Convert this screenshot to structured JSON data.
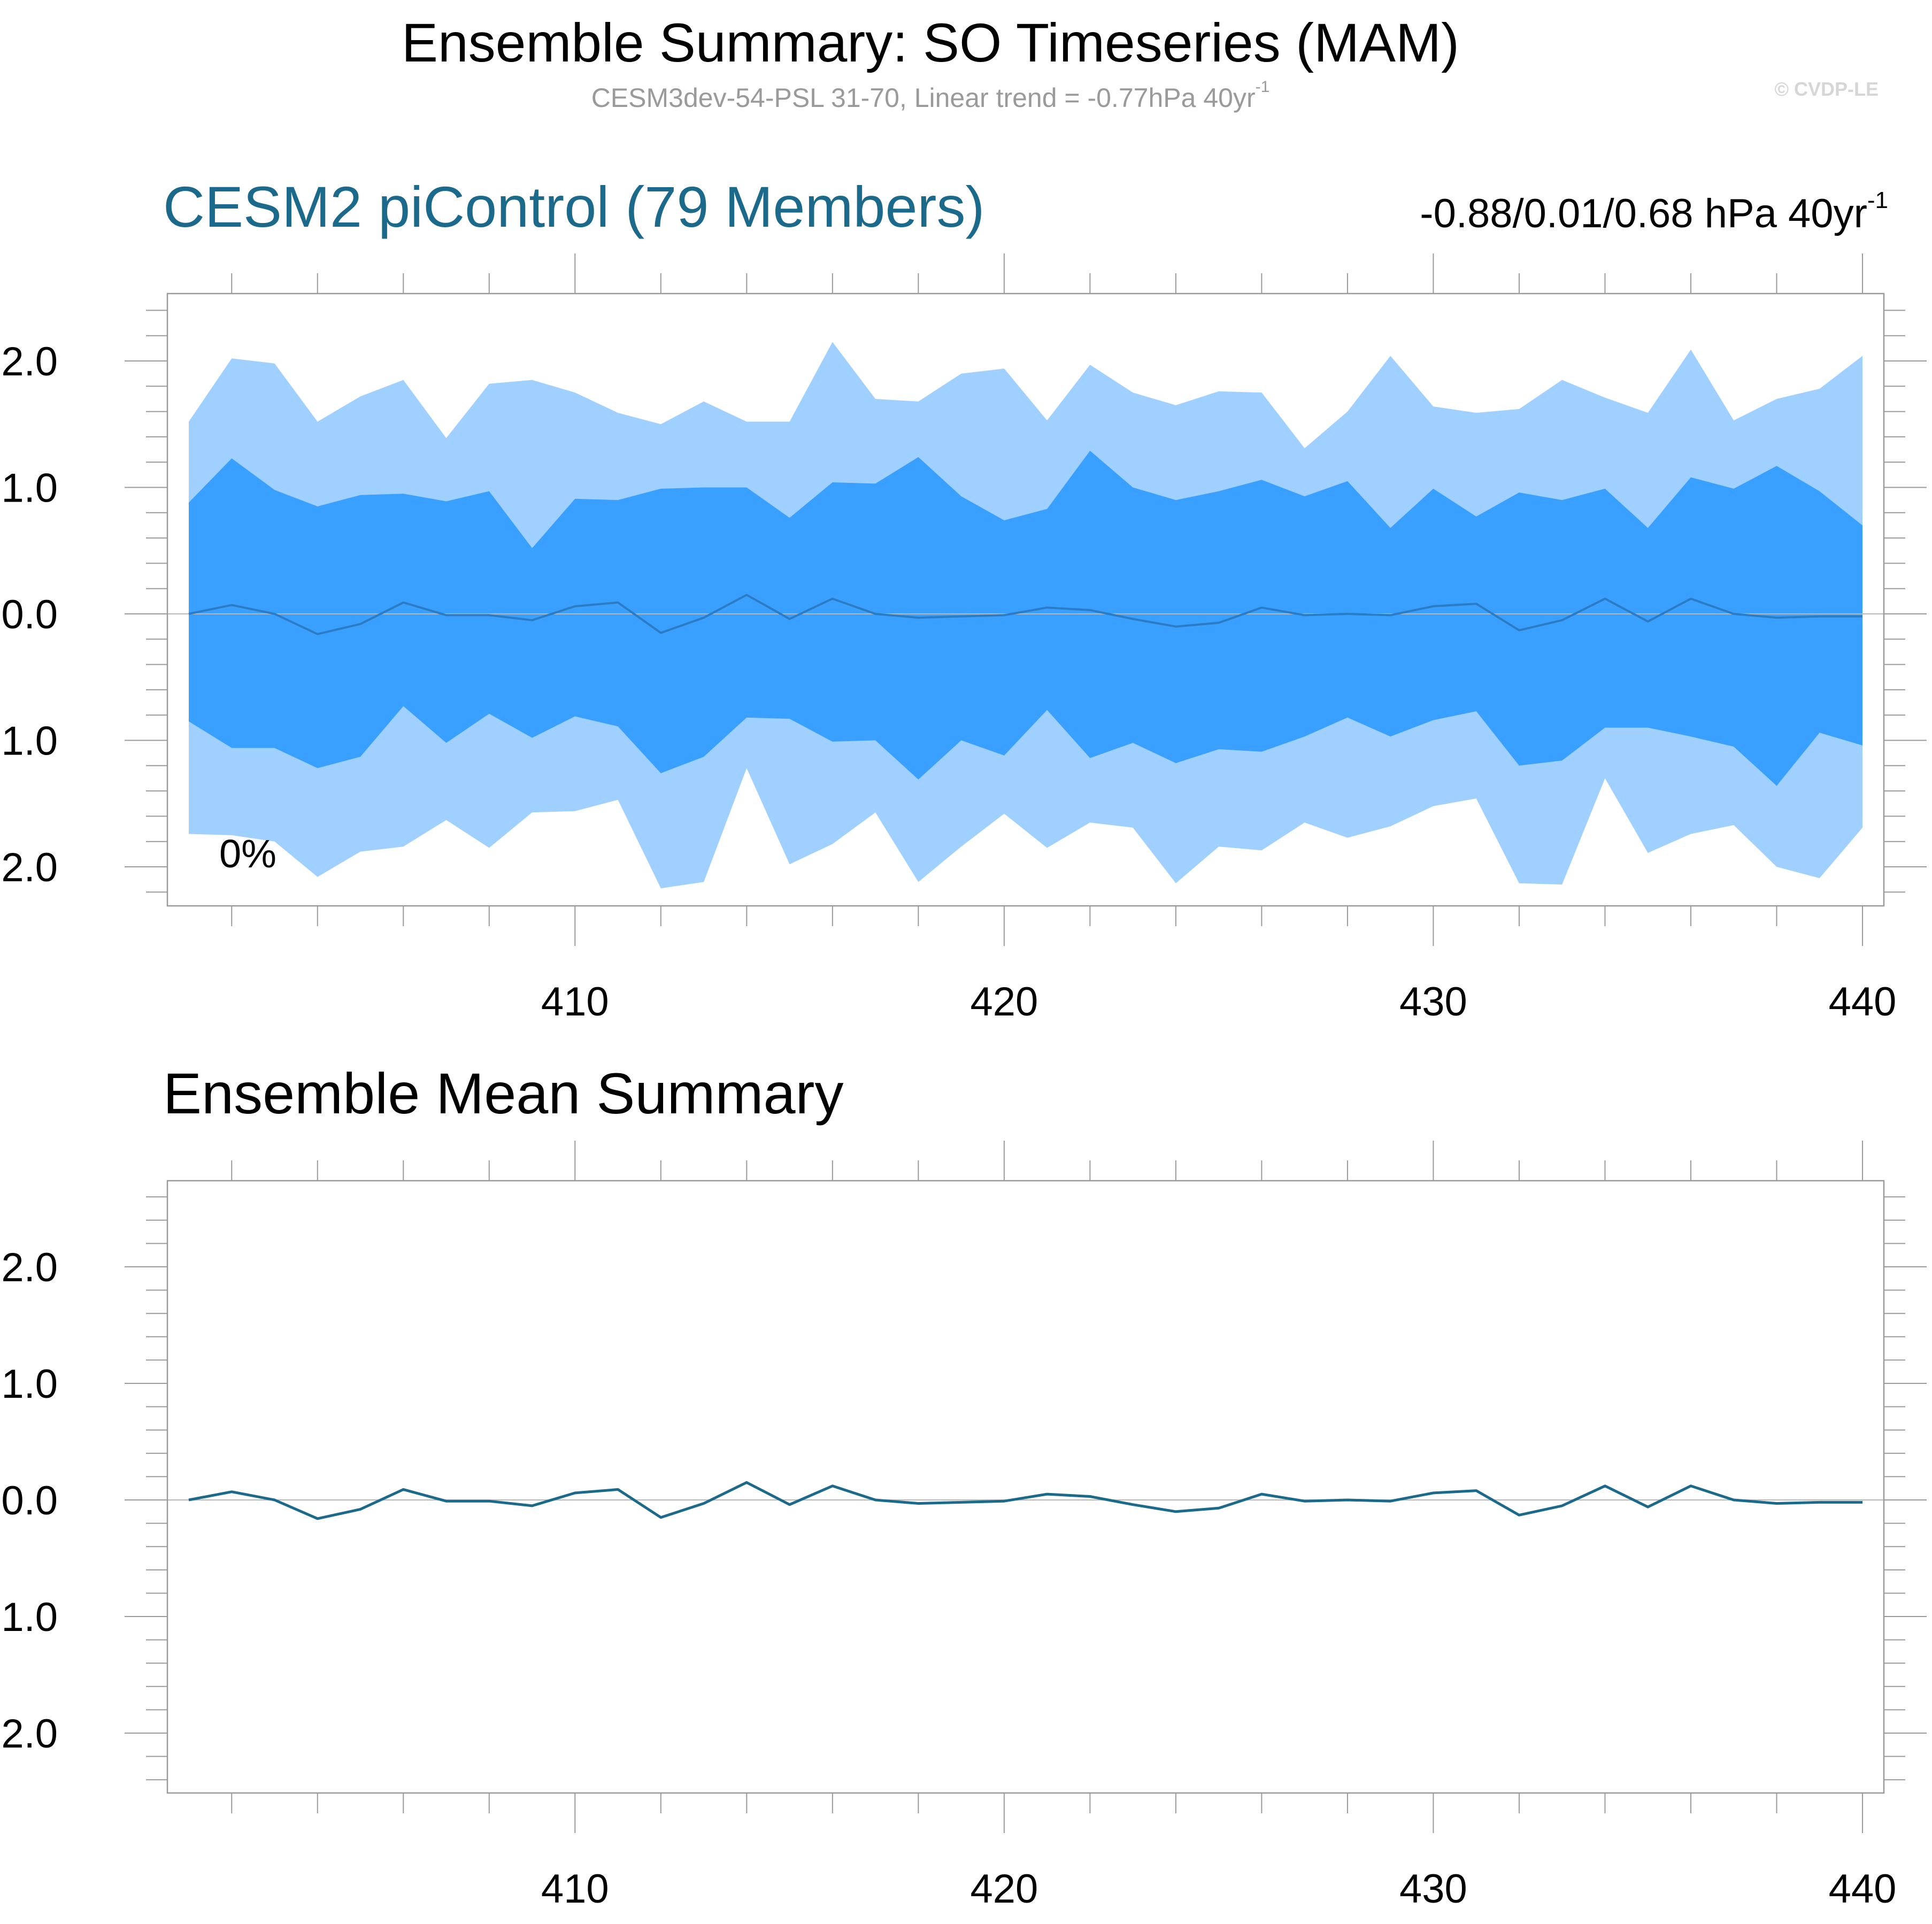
{
  "header": {
    "title": "Ensemble Summary: SO Timeseries (MAM)",
    "subtitle": "CESM3dev-54-PSL 31-70, Linear trend = -0.77hPa 40yr",
    "subtitle_sup": "-1",
    "watermark": "© CVDP-LE"
  },
  "panel1": {
    "title": "CESM2 piControl (79 Members)",
    "stats": "-0.88/0.01/0.68 hPa 40yr",
    "stats_sup": "-1",
    "annotation": "0%"
  },
  "panel2": {
    "title": "Ensemble Mean Summary"
  },
  "colors": {
    "outer_band": "#a0d0ff",
    "inner_band": "#3aa0ff",
    "p1_mean_line": "#2b7cc4",
    "p2_mean_line": "#1b6a8b",
    "frame": "#9a9a9a"
  },
  "chart_data": [
    {
      "type": "area",
      "x": [
        401,
        402,
        403,
        404,
        405,
        406,
        407,
        408,
        409,
        410,
        411,
        412,
        413,
        414,
        415,
        416,
        417,
        418,
        419,
        420,
        421,
        422,
        423,
        424,
        425,
        426,
        427,
        428,
        429,
        430,
        431,
        432,
        433,
        434,
        435,
        436,
        437,
        438,
        439,
        440
      ],
      "xlim": [
        400.5,
        441
      ],
      "ylim": [
        -2.3,
        2.55
      ],
      "xticks": [
        410,
        420,
        430,
        440
      ],
      "yticks": [
        2.0,
        1.0,
        0.0,
        -1.0,
        -2.0
      ],
      "ytick_labels": [
        "2.0",
        "1.0",
        "0.0",
        "-1.0",
        "-2.0"
      ],
      "series": [
        {
          "role": "max",
          "values": [
            1.52,
            2.02,
            1.98,
            1.52,
            1.72,
            1.85,
            1.39,
            1.82,
            1.85,
            1.75,
            1.59,
            1.5,
            1.68,
            1.52,
            1.52,
            2.15,
            1.7,
            1.68,
            1.9,
            1.94,
            1.53,
            1.97,
            1.75,
            1.65,
            1.76,
            1.75,
            1.31,
            1.6,
            2.04,
            1.64,
            1.59,
            1.62,
            1.85,
            1.71,
            1.59,
            2.09,
            1.53,
            1.7,
            1.78,
            2.04
          ]
        },
        {
          "role": "upper",
          "values": [
            0.88,
            1.23,
            0.98,
            0.85,
            0.94,
            0.95,
            0.89,
            0.97,
            0.52,
            0.91,
            0.9,
            0.99,
            1.0,
            1.0,
            0.76,
            1.04,
            1.03,
            1.24,
            0.93,
            0.74,
            0.83,
            1.29,
            1.0,
            0.9,
            0.97,
            1.06,
            0.93,
            1.05,
            0.68,
            0.99,
            0.77,
            0.96,
            0.9,
            0.99,
            0.68,
            1.08,
            0.99,
            1.17,
            0.97,
            0.7
          ]
        },
        {
          "role": "mean",
          "values": [
            0.0,
            0.07,
            0.0,
            -0.16,
            -0.08,
            0.09,
            -0.01,
            -0.01,
            -0.05,
            0.06,
            0.09,
            -0.15,
            -0.03,
            0.15,
            -0.04,
            0.12,
            0.0,
            -0.03,
            -0.02,
            -0.01,
            0.05,
            0.03,
            -0.04,
            -0.1,
            -0.07,
            0.05,
            -0.01,
            0.0,
            -0.01,
            0.06,
            0.08,
            -0.13,
            -0.05,
            0.12,
            -0.06,
            0.12,
            0.0,
            -0.03,
            -0.02,
            -0.02
          ]
        },
        {
          "role": "lower",
          "values": [
            -0.85,
            -1.06,
            -1.06,
            -1.22,
            -1.13,
            -0.73,
            -1.02,
            -0.79,
            -0.98,
            -0.81,
            -0.89,
            -1.26,
            -1.13,
            -0.82,
            -0.83,
            -1.01,
            -1.0,
            -1.31,
            -1.0,
            -1.12,
            -0.76,
            -1.14,
            -1.02,
            -1.18,
            -1.07,
            -1.09,
            -0.97,
            -0.82,
            -0.97,
            -0.84,
            -0.77,
            -1.2,
            -1.16,
            -0.9,
            -0.9,
            -0.97,
            -1.05,
            -1.36,
            -0.94,
            -1.04
          ]
        },
        {
          "role": "min",
          "values": [
            -1.74,
            -1.75,
            -1.8,
            -2.08,
            -1.88,
            -1.84,
            -1.63,
            -1.85,
            -1.57,
            -1.56,
            -1.47,
            -2.17,
            -2.12,
            -1.22,
            -1.98,
            -1.82,
            -1.57,
            -2.12,
            -1.84,
            -1.58,
            -1.85,
            -1.65,
            -1.69,
            -2.13,
            -1.84,
            -1.87,
            -1.65,
            -1.77,
            -1.68,
            -1.52,
            -1.46,
            -2.13,
            -2.14,
            -1.3,
            -1.89,
            -1.74,
            -1.67,
            -2.0,
            -2.09,
            -1.69
          ]
        }
      ]
    },
    {
      "type": "line",
      "x": [
        401,
        402,
        403,
        404,
        405,
        406,
        407,
        408,
        409,
        410,
        411,
        412,
        413,
        414,
        415,
        416,
        417,
        418,
        419,
        420,
        421,
        422,
        423,
        424,
        425,
        426,
        427,
        428,
        429,
        430,
        431,
        432,
        433,
        434,
        435,
        436,
        437,
        438,
        439,
        440
      ],
      "xlim": [
        400.5,
        441
      ],
      "ylim": [
        -2.55,
        2.65
      ],
      "xticks": [
        410,
        420,
        430,
        440
      ],
      "yticks": [
        2.0,
        1.0,
        0.0,
        -1.0,
        -2.0
      ],
      "ytick_labels": [
        "2.0",
        "1.0",
        "0.0",
        "-1.0",
        "-2.0"
      ],
      "series": [
        {
          "role": "mean",
          "values": [
            0.0,
            0.07,
            0.0,
            -0.16,
            -0.08,
            0.09,
            -0.01,
            -0.01,
            -0.05,
            0.06,
            0.09,
            -0.15,
            -0.03,
            0.15,
            -0.04,
            0.12,
            0.0,
            -0.03,
            -0.02,
            -0.01,
            0.05,
            0.03,
            -0.04,
            -0.1,
            -0.07,
            0.05,
            -0.01,
            0.0,
            -0.01,
            0.06,
            0.08,
            -0.13,
            -0.05,
            0.12,
            -0.06,
            0.12,
            0.0,
            -0.03,
            -0.02,
            -0.02
          ]
        }
      ]
    }
  ]
}
